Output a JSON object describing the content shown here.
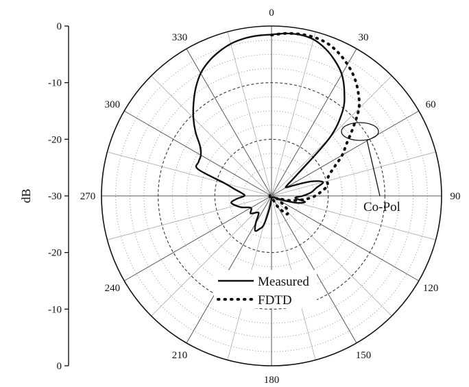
{
  "chart_data": {
    "type": "polar",
    "ylabel": "dB",
    "radial_ticks": [
      "0",
      "-10",
      "-20",
      "-30",
      "-20",
      "-10",
      "0"
    ],
    "rlim": [
      -30,
      0
    ],
    "angle_ticks": [
      "0",
      "30",
      "60",
      "90",
      "120",
      "150",
      "180",
      "210",
      "240",
      "270",
      "300",
      "330"
    ],
    "grid": true,
    "legend": {
      "position": "bottom-center",
      "entries": [
        {
          "label": "Measured",
          "style": "solid"
        },
        {
          "label": "FDTD",
          "style": "dotted"
        }
      ]
    },
    "annotation": {
      "text": "Co-Pol"
    },
    "series": [
      {
        "name": "Measured",
        "style": "solid",
        "theta": [
          0,
          5,
          10,
          15,
          20,
          25,
          30,
          35,
          40,
          45,
          50,
          55,
          60,
          65,
          70,
          75,
          80,
          85,
          90,
          95,
          100,
          105,
          110,
          115,
          120,
          130,
          140,
          150,
          160,
          170,
          180,
          190,
          195,
          200,
          205,
          210,
          215,
          220,
          230,
          240,
          250,
          260,
          265,
          270,
          275,
          280,
          285,
          290,
          295,
          300,
          305,
          310,
          315,
          320,
          325,
          330,
          335,
          340,
          345,
          350,
          355,
          360
        ],
        "r": [
          -1.5,
          -1.2,
          -1.1,
          -1.4,
          -2.3,
          -3.6,
          -5.2,
          -7.6,
          -10.5,
          -15.5,
          -24,
          -26.5,
          -27,
          -25.5,
          -22.5,
          -20.6,
          -22,
          -23,
          -24.5,
          -25.8,
          -24,
          -25.2,
          -27.5,
          -29,
          -29.5,
          -29.6,
          -29.7,
          -29.7,
          -29.7,
          -29.7,
          -29.5,
          -27.5,
          -24.7,
          -23.8,
          -23.2,
          -24.4,
          -26,
          -26.2,
          -25.2,
          -25.8,
          -24.2,
          -22.8,
          -23.8,
          -25.2,
          -24.8,
          -23.5,
          -21.5,
          -16.2,
          -15.8,
          -15.6,
          -14.6,
          -12.5,
          -10.5,
          -8.6,
          -6.7,
          -5,
          -3.8,
          -2.9,
          -2.2,
          -1.8,
          -1.6,
          -1.5
        ]
      },
      {
        "name": "FDTD",
        "style": "dotted",
        "theta": [
          0,
          5,
          10,
          15,
          20,
          25,
          30,
          35,
          40,
          45,
          50,
          55,
          60,
          65,
          70,
          75,
          80,
          85,
          90,
          95,
          100,
          105,
          110,
          115,
          120,
          130,
          140,
          150,
          160,
          170,
          180,
          190,
          200,
          210,
          220,
          230,
          240,
          250,
          260,
          270,
          280,
          290,
          300,
          310,
          320,
          330,
          340,
          350,
          355,
          360
        ],
        "r": [
          -1.6,
          -1.2,
          -1,
          -1,
          -1.3,
          -2.1,
          -3.2,
          -4.5,
          -6.2,
          -8.2,
          -11.2,
          -13.8,
          -15.6,
          -17.7,
          -19.2,
          -19.8,
          -20,
          -21.2,
          -22.3,
          -23.8,
          -25.5,
          -27,
          -28.5,
          -29,
          -28.5,
          -26.5,
          -25.8,
          -27.8,
          -29.5,
          -29.7,
          -29.7,
          -29.7,
          -29.7,
          -29.7,
          -29.7,
          -29.7,
          -29.7,
          -29.7,
          -29.7,
          -29.7,
          -29.7,
          -29.7,
          -29.7,
          -29.7,
          -29.7,
          -29.7,
          -29.7,
          -29.7,
          -29.7,
          -29.7
        ]
      }
    ]
  }
}
